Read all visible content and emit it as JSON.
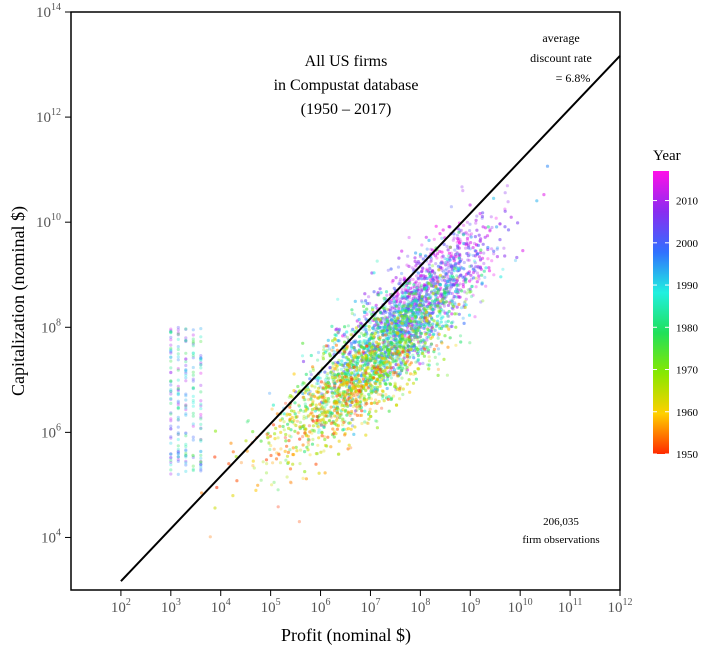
{
  "chart_data": {
    "type": "scatter",
    "xlabel": "Profit (nominal $)",
    "ylabel": "Capitalization (nominal $)",
    "x_scale": "log10",
    "y_scale": "log10",
    "xlim": [
      10,
      1000000000000.0
    ],
    "ylim": [
      1000.0,
      100000000000000.0
    ],
    "x_ticks": [
      {
        "base": "10",
        "exp": "2"
      },
      {
        "base": "10",
        "exp": "3"
      },
      {
        "base": "10",
        "exp": "4"
      },
      {
        "base": "10",
        "exp": "5"
      },
      {
        "base": "10",
        "exp": "6"
      },
      {
        "base": "10",
        "exp": "7"
      },
      {
        "base": "10",
        "exp": "8"
      },
      {
        "base": "10",
        "exp": "9"
      },
      {
        "base": "10",
        "exp": "10"
      },
      {
        "base": "10",
        "exp": "11"
      },
      {
        "base": "10",
        "exp": "12"
      }
    ],
    "y_ticks": [
      {
        "base": "10",
        "exp": "4"
      },
      {
        "base": "10",
        "exp": "6"
      },
      {
        "base": "10",
        "exp": "8"
      },
      {
        "base": "10",
        "exp": "10"
      },
      {
        "base": "10",
        "exp": "12"
      },
      {
        "base": "10",
        "exp": "14"
      }
    ],
    "grid": false,
    "annotations": {
      "title_lines": [
        "All US firms",
        "in Compustat database",
        "(1950 – 2017)"
      ],
      "discount_lines": [
        "average",
        "discount rate",
        "= 6.8%"
      ],
      "obs_lines": [
        "206,035",
        "firm observations"
      ]
    },
    "regression_line": {
      "x": [
        100,
        1000000000000.0
      ],
      "y": [
        1470,
        14700000000000.0
      ],
      "color": "#000000"
    },
    "color_scale": {
      "title": "Year",
      "min": 1950,
      "max": 2017,
      "ticks": [
        "1950",
        "1960",
        "1970",
        "1980",
        "1990",
        "2000",
        "2010"
      ],
      "colors": [
        "#ff2a00",
        "#ffd000",
        "#88e800",
        "#20e05a",
        "#20f0e0",
        "#3070ff",
        "#8a2cf0",
        "#ff10e8"
      ]
    },
    "series": [
      {
        "year": 1950,
        "center_log_x": 6.5,
        "center_log_y": 7.2
      },
      {
        "year": 1960,
        "center_log_x": 6.2,
        "center_log_y": 7.0
      },
      {
        "year": 1970,
        "center_log_x": 6.8,
        "center_log_y": 7.2
      },
      {
        "year": 1980,
        "center_log_x": 7.2,
        "center_log_y": 7.8
      },
      {
        "year": 1990,
        "center_log_x": 6.5,
        "center_log_y": 7.8
      },
      {
        "year": 2000,
        "center_log_x": 7.5,
        "center_log_y": 8.8
      },
      {
        "year": 2010,
        "center_log_x": 8.5,
        "center_log_y": 9.8
      }
    ]
  }
}
